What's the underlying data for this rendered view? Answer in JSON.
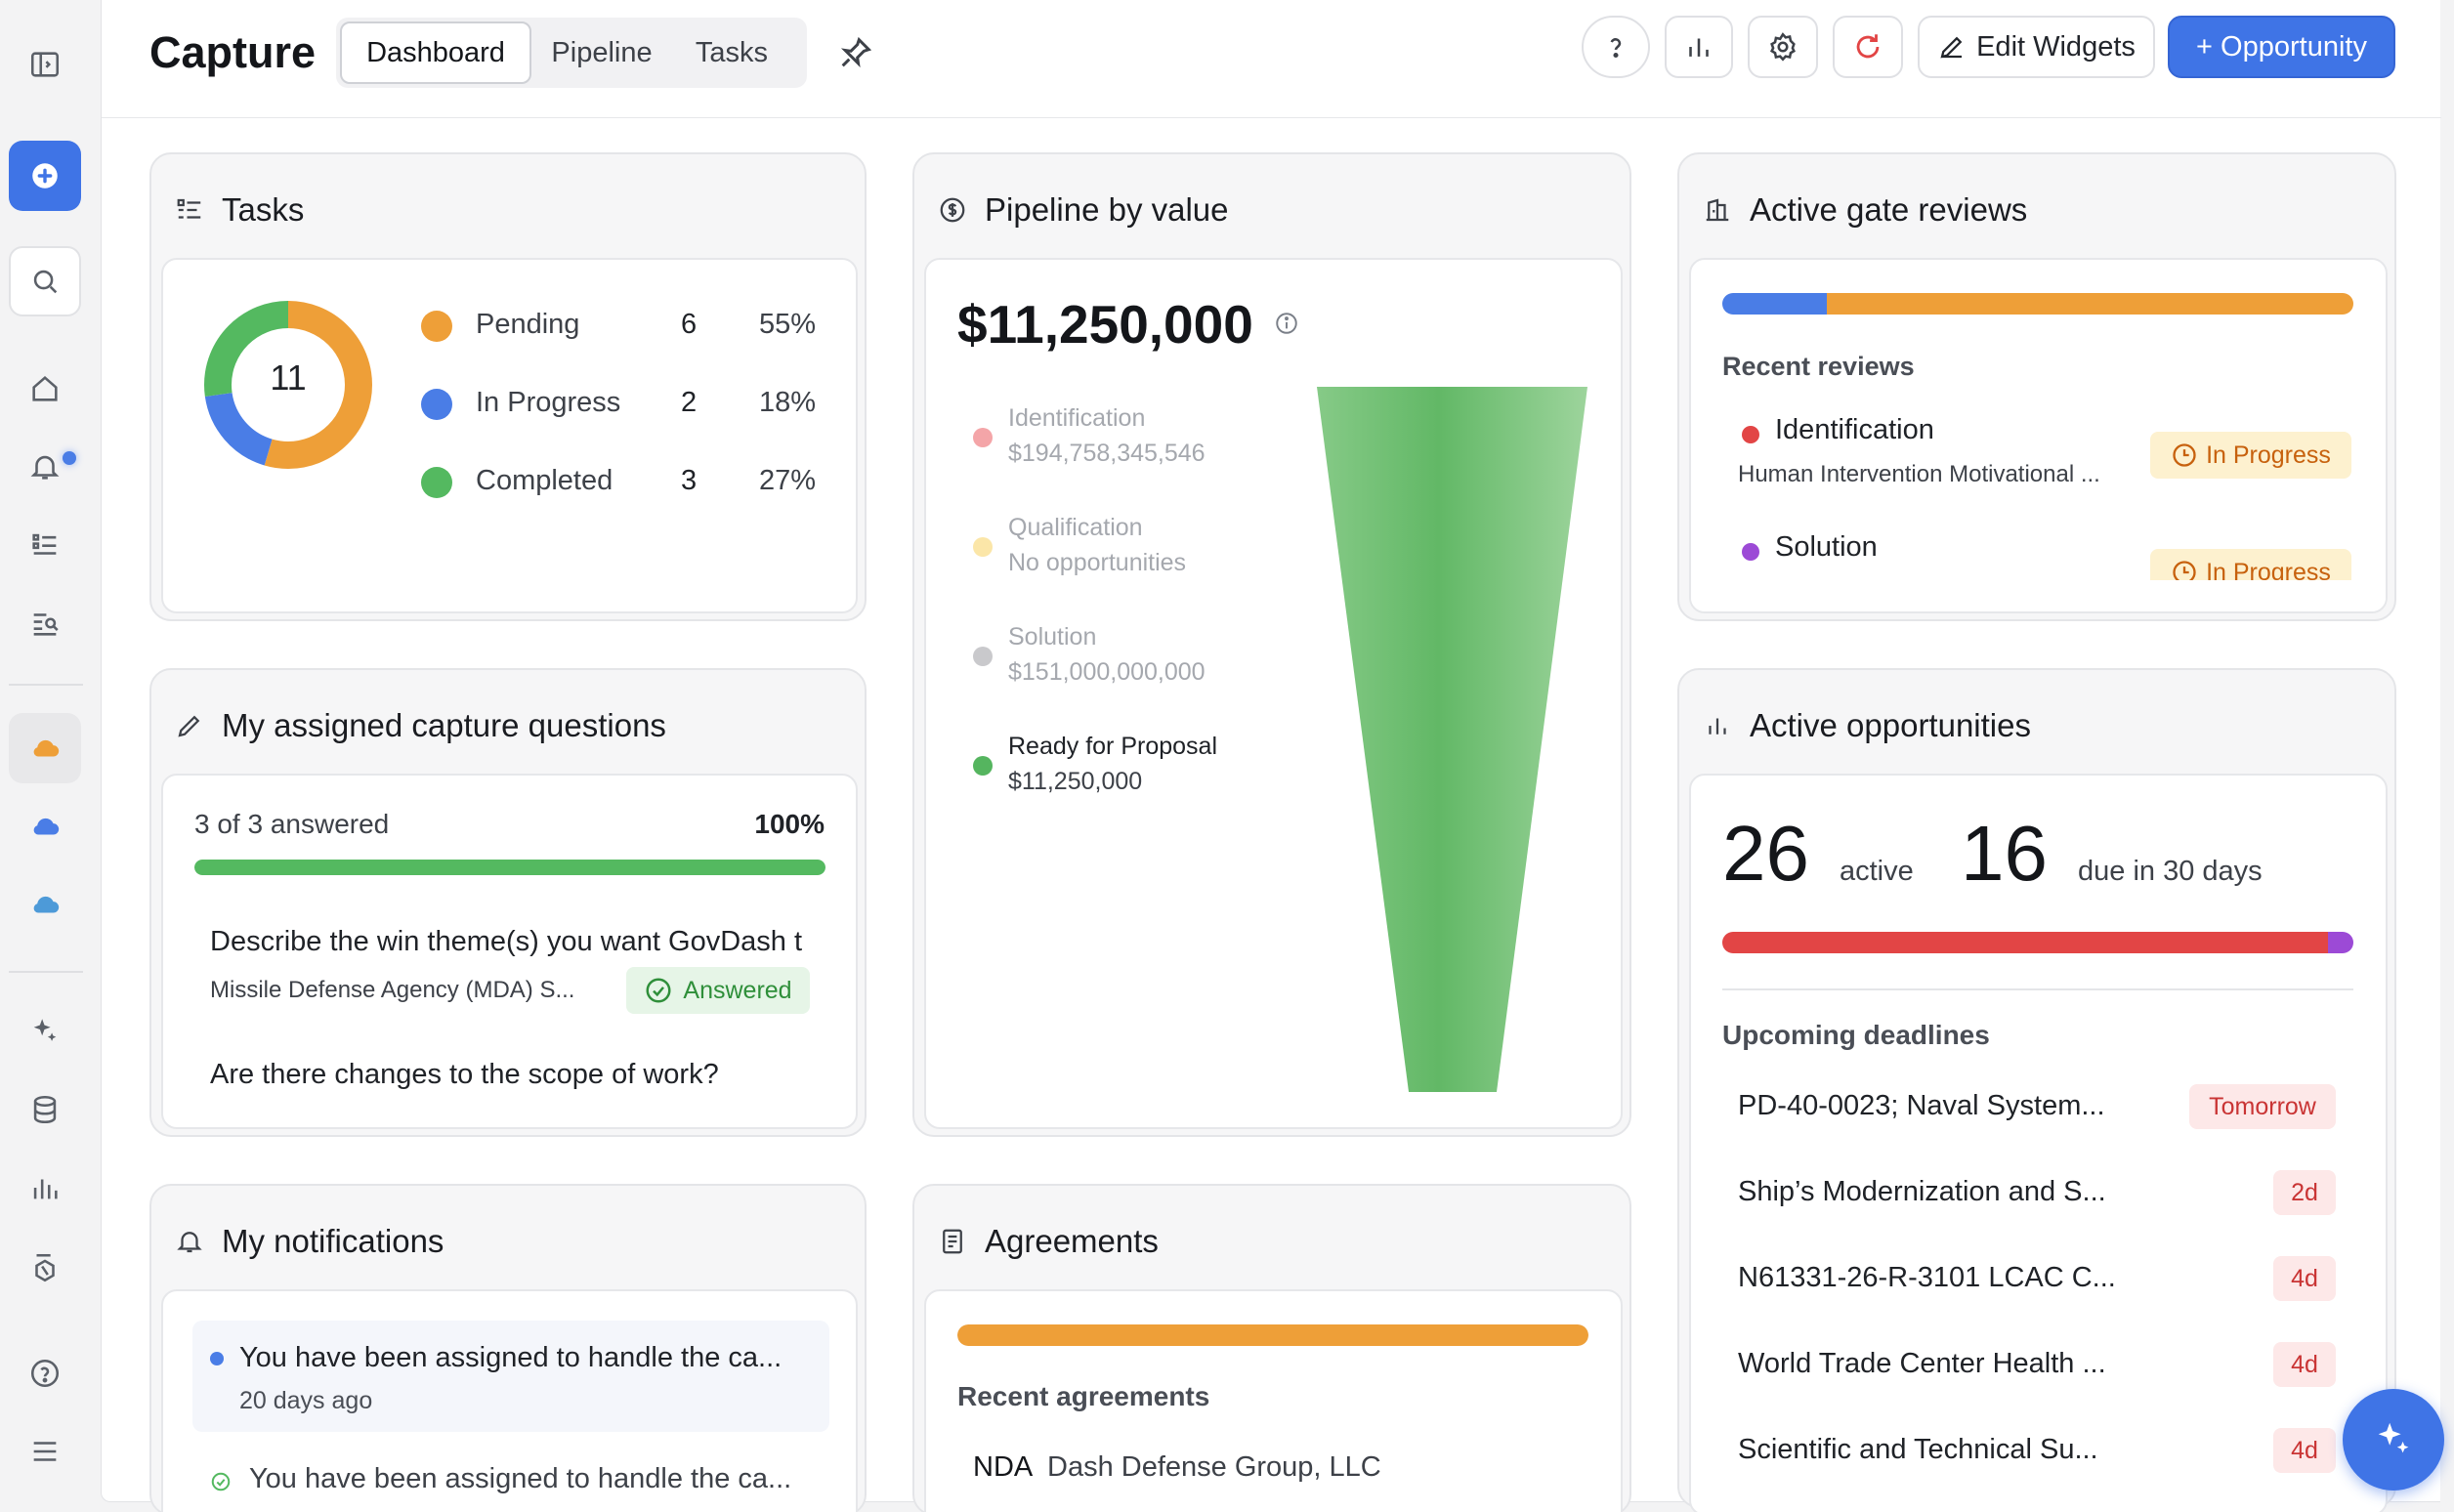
{
  "header": {
    "title": "Capture",
    "tabs": [
      "Dashboard",
      "Pipeline",
      "Tasks"
    ],
    "edit_widgets": "Edit Widgets",
    "new_opportunity": "+ Opportunity"
  },
  "tasks": {
    "title": "Tasks",
    "total": "11",
    "rows": [
      {
        "label": "Pending",
        "count": "6",
        "pct": "55%",
        "color": "#ee9f38"
      },
      {
        "label": "In Progress",
        "count": "2",
        "pct": "18%",
        "color": "#4a7de6"
      },
      {
        "label": "Completed",
        "count": "3",
        "pct": "27%",
        "color": "#54b960"
      }
    ]
  },
  "pipeline": {
    "title": "Pipeline by value",
    "total": "$11,250,000",
    "stages": [
      {
        "name": "Identification",
        "value": "$194,758,345,546",
        "color": "#f4a5a8",
        "active": false
      },
      {
        "name": "Qualification",
        "value": "No opportunities",
        "color": "#fbe6a8",
        "active": false
      },
      {
        "name": "Solution",
        "value": "$151,000,000,000",
        "color": "#c9c9cc",
        "active": false
      },
      {
        "name": "Ready for Proposal",
        "value": "$11,250,000",
        "color": "#55b55f",
        "active": true
      }
    ]
  },
  "gate_reviews": {
    "title": "Active gate reviews",
    "progress": {
      "blue": 0.165,
      "orange": 0.835
    },
    "recent_label": "Recent reviews",
    "items": [
      {
        "name": "Identification",
        "subtitle": "Human Intervention Motivational ...",
        "status": "In Progress",
        "dot": "#e24545"
      },
      {
        "name": "Solution",
        "subtitle": "",
        "status": "In Progress",
        "dot": "#9c4ad6"
      }
    ]
  },
  "questions": {
    "title": "My assigned capture questions",
    "answered": "3 of 3 answered",
    "pct": "100%",
    "progress": 1.0,
    "items": [
      {
        "question": "Describe the win theme(s) you want GovDash t",
        "source": "Missile Defense Agency (MDA) S...",
        "status": "Answered"
      },
      {
        "question": "Are there changes to the scope of work?",
        "source": "",
        "status": ""
      }
    ]
  },
  "opportunities": {
    "title": "Active opportunities",
    "active_count": "26",
    "active_label": "active",
    "due_count": "16",
    "due_label": "due in 30 days",
    "progress": {
      "red": 0.96,
      "purple": 0.04
    },
    "deadlines_label": "Upcoming deadlines",
    "deadlines": [
      {
        "name": "PD-40-0023; Naval System...",
        "due": "Tomorrow"
      },
      {
        "name": "Ship’s Modernization and S...",
        "due": "2d"
      },
      {
        "name": "N61331-26-R-3101 LCAC C...",
        "due": "4d"
      },
      {
        "name": "World Trade Center Health ...",
        "due": "4d"
      },
      {
        "name": "Scientific and Technical Su...",
        "due": "4d"
      }
    ]
  },
  "notifications": {
    "title": "My notifications",
    "items": [
      {
        "text": "You have been assigned to handle the ca...",
        "time": "20 days ago",
        "unread": true
      },
      {
        "text": "You have been assigned to handle the ca...",
        "time": "",
        "unread": false
      }
    ]
  },
  "agreements": {
    "title": "Agreements",
    "progress": 1.0,
    "recent_label": "Recent agreements",
    "items": [
      {
        "type": "NDA",
        "party": "Dash Defense Group, LLC"
      }
    ]
  }
}
